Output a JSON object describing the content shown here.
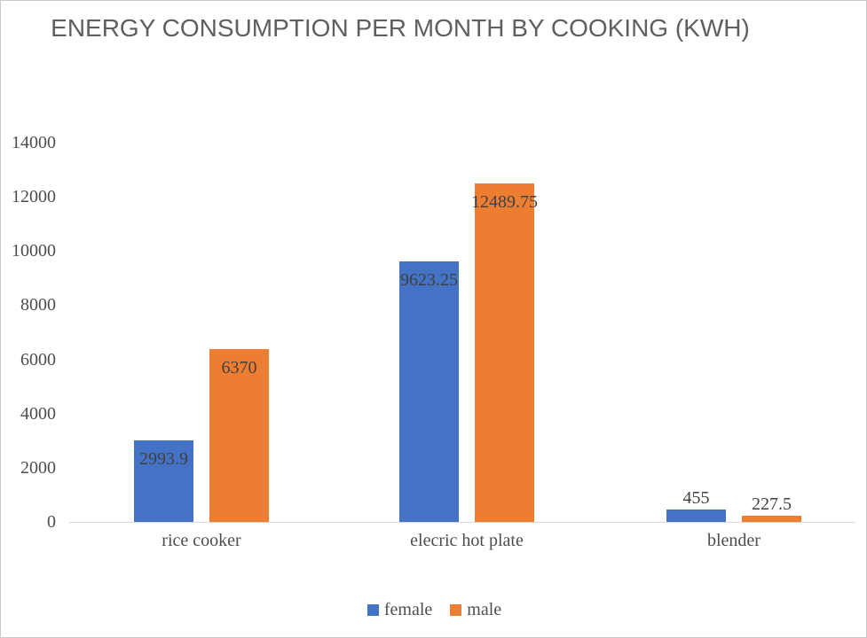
{
  "chart_data": {
    "type": "bar",
    "title": "ENERGY CONSUMPTION PER MONTH BY COOKING (KWH)",
    "categories": [
      "rice cooker",
      "elecric hot plate",
      "blender"
    ],
    "series": [
      {
        "name": "female",
        "color": "#4472C4",
        "values": [
          2993.9,
          9623.25,
          455
        ]
      },
      {
        "name": "male",
        "color": "#ED7D31",
        "values": [
          6370,
          12489.75,
          227.5
        ]
      }
    ],
    "data_labels": {
      "shown": true,
      "female": [
        "2993.9",
        "9623.25",
        "455"
      ],
      "male": [
        "6370",
        "12489.75",
        "227.5"
      ]
    },
    "y_axis": {
      "min": 0,
      "max": 14000,
      "step": 2000,
      "tick_labels": [
        "0",
        "2000",
        "4000",
        "6000",
        "8000",
        "10000",
        "12000",
        "14000"
      ]
    },
    "xlabel": "",
    "ylabel": "",
    "grid": false,
    "legend_position": "bottom",
    "legend_entries": [
      "female",
      "male"
    ]
  }
}
